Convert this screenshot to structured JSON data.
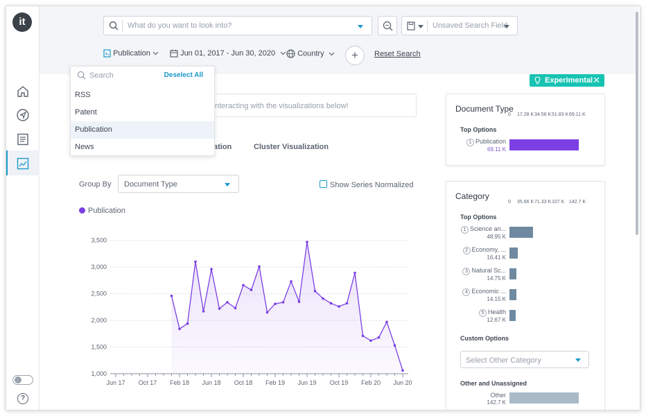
{
  "app": {
    "logo_text": "it"
  },
  "search": {
    "placeholder": "What do you want to look into?",
    "saved_field": "Unsaved Search Field"
  },
  "filters": {
    "publication": "Publication",
    "date_range": "Jun 01, 2017 - Jun 30, 2020",
    "country": "Country",
    "reset": "Reset Search"
  },
  "dropdown": {
    "search_placeholder": "Search",
    "deselect_all": "Deselect All",
    "items": [
      "RSS",
      "Patent",
      "Publication",
      "News"
    ],
    "selected": "Publication"
  },
  "experimental": {
    "label": "Experimental"
  },
  "info_text": "nteracting with the visualizations below!",
  "tabs": [
    "ation",
    "Cluster Visualization"
  ],
  "controls": {
    "group_by_label": "Group By",
    "group_by_value": "Document Type",
    "normalize_label": "Show Series Normalized"
  },
  "colors": {
    "accent": "#1a99c9",
    "series": "#7b3fe4",
    "category_bar": "#6f8aa0",
    "other_bar": "#aab9c6",
    "experimental": "#17c3b2"
  },
  "chart_data": {
    "type": "area",
    "series": [
      {
        "name": "Publication",
        "values": [
          2460,
          1840,
          1940,
          3100,
          2170,
          2960,
          2220,
          2340,
          2230,
          2660,
          2570,
          3010,
          2150,
          2310,
          2340,
          2730,
          2350,
          3470,
          2550,
          2410,
          2320,
          2260,
          2320,
          2890,
          1710,
          1620,
          1680,
          1970,
          1530,
          1060
        ]
      }
    ],
    "x": [
      "2018-01",
      "2018-02",
      "2018-03",
      "2018-04",
      "2018-05",
      "2018-06",
      "2018-07",
      "2018-08",
      "2018-09",
      "2018-10",
      "2018-11",
      "2018-12",
      "2019-01",
      "2019-02",
      "2019-03",
      "2019-04",
      "2019-05",
      "2019-06",
      "2019-07",
      "2019-08",
      "2019-09",
      "2019-10",
      "2019-11",
      "2019-12",
      "2020-01",
      "2020-02",
      "2020-03",
      "2020-04",
      "2020-05",
      "2020-06"
    ],
    "x_ticks": [
      "Jun 17",
      "Oct 17",
      "Feb 18",
      "Jun 18",
      "Oct 18",
      "Feb 19",
      "Jun 19",
      "Oct 19",
      "Feb 20",
      "Jun 20"
    ],
    "y_ticks": [
      "1,000",
      "1,500",
      "2,000",
      "2,500",
      "3,000",
      "3,500"
    ],
    "ylim": [
      1000,
      3600
    ],
    "grid": true
  },
  "doc_type_card": {
    "title": "Document Type",
    "scale": [
      "0",
      "17.28 K",
      "34.56 K",
      "51.83 K",
      "69.11 K"
    ],
    "top_options_label": "Top Options",
    "rows": [
      {
        "rank": "1",
        "label": "Publication",
        "value": "69.11 K",
        "fraction": 1.0
      }
    ]
  },
  "category_card": {
    "title": "Category",
    "scale": [
      "0",
      "35.66 K",
      "71.33 K",
      "107 K",
      "142.7 K"
    ],
    "top_options_label": "Top Options",
    "rows": [
      {
        "rank": "1",
        "label": "Science an...",
        "value": "48.95 K",
        "fraction": 0.343
      },
      {
        "rank": "2",
        "label": "Economy, ...",
        "value": "16.41 K",
        "fraction": 0.115
      },
      {
        "rank": "3",
        "label": "Natural Sc...",
        "value": "14.75 K",
        "fraction": 0.103
      },
      {
        "rank": "4",
        "label": "Economic ...",
        "value": "14.15 K",
        "fraction": 0.099
      },
      {
        "rank": "5",
        "label": "Health",
        "value": "12.67 K",
        "fraction": 0.089
      }
    ],
    "custom_options_label": "Custom Options",
    "custom_placeholder": "Select Other Category",
    "other_label_heading": "Other and Unassigned",
    "other": {
      "label": "Other",
      "value": "142.7 K",
      "fraction": 1.0
    }
  }
}
